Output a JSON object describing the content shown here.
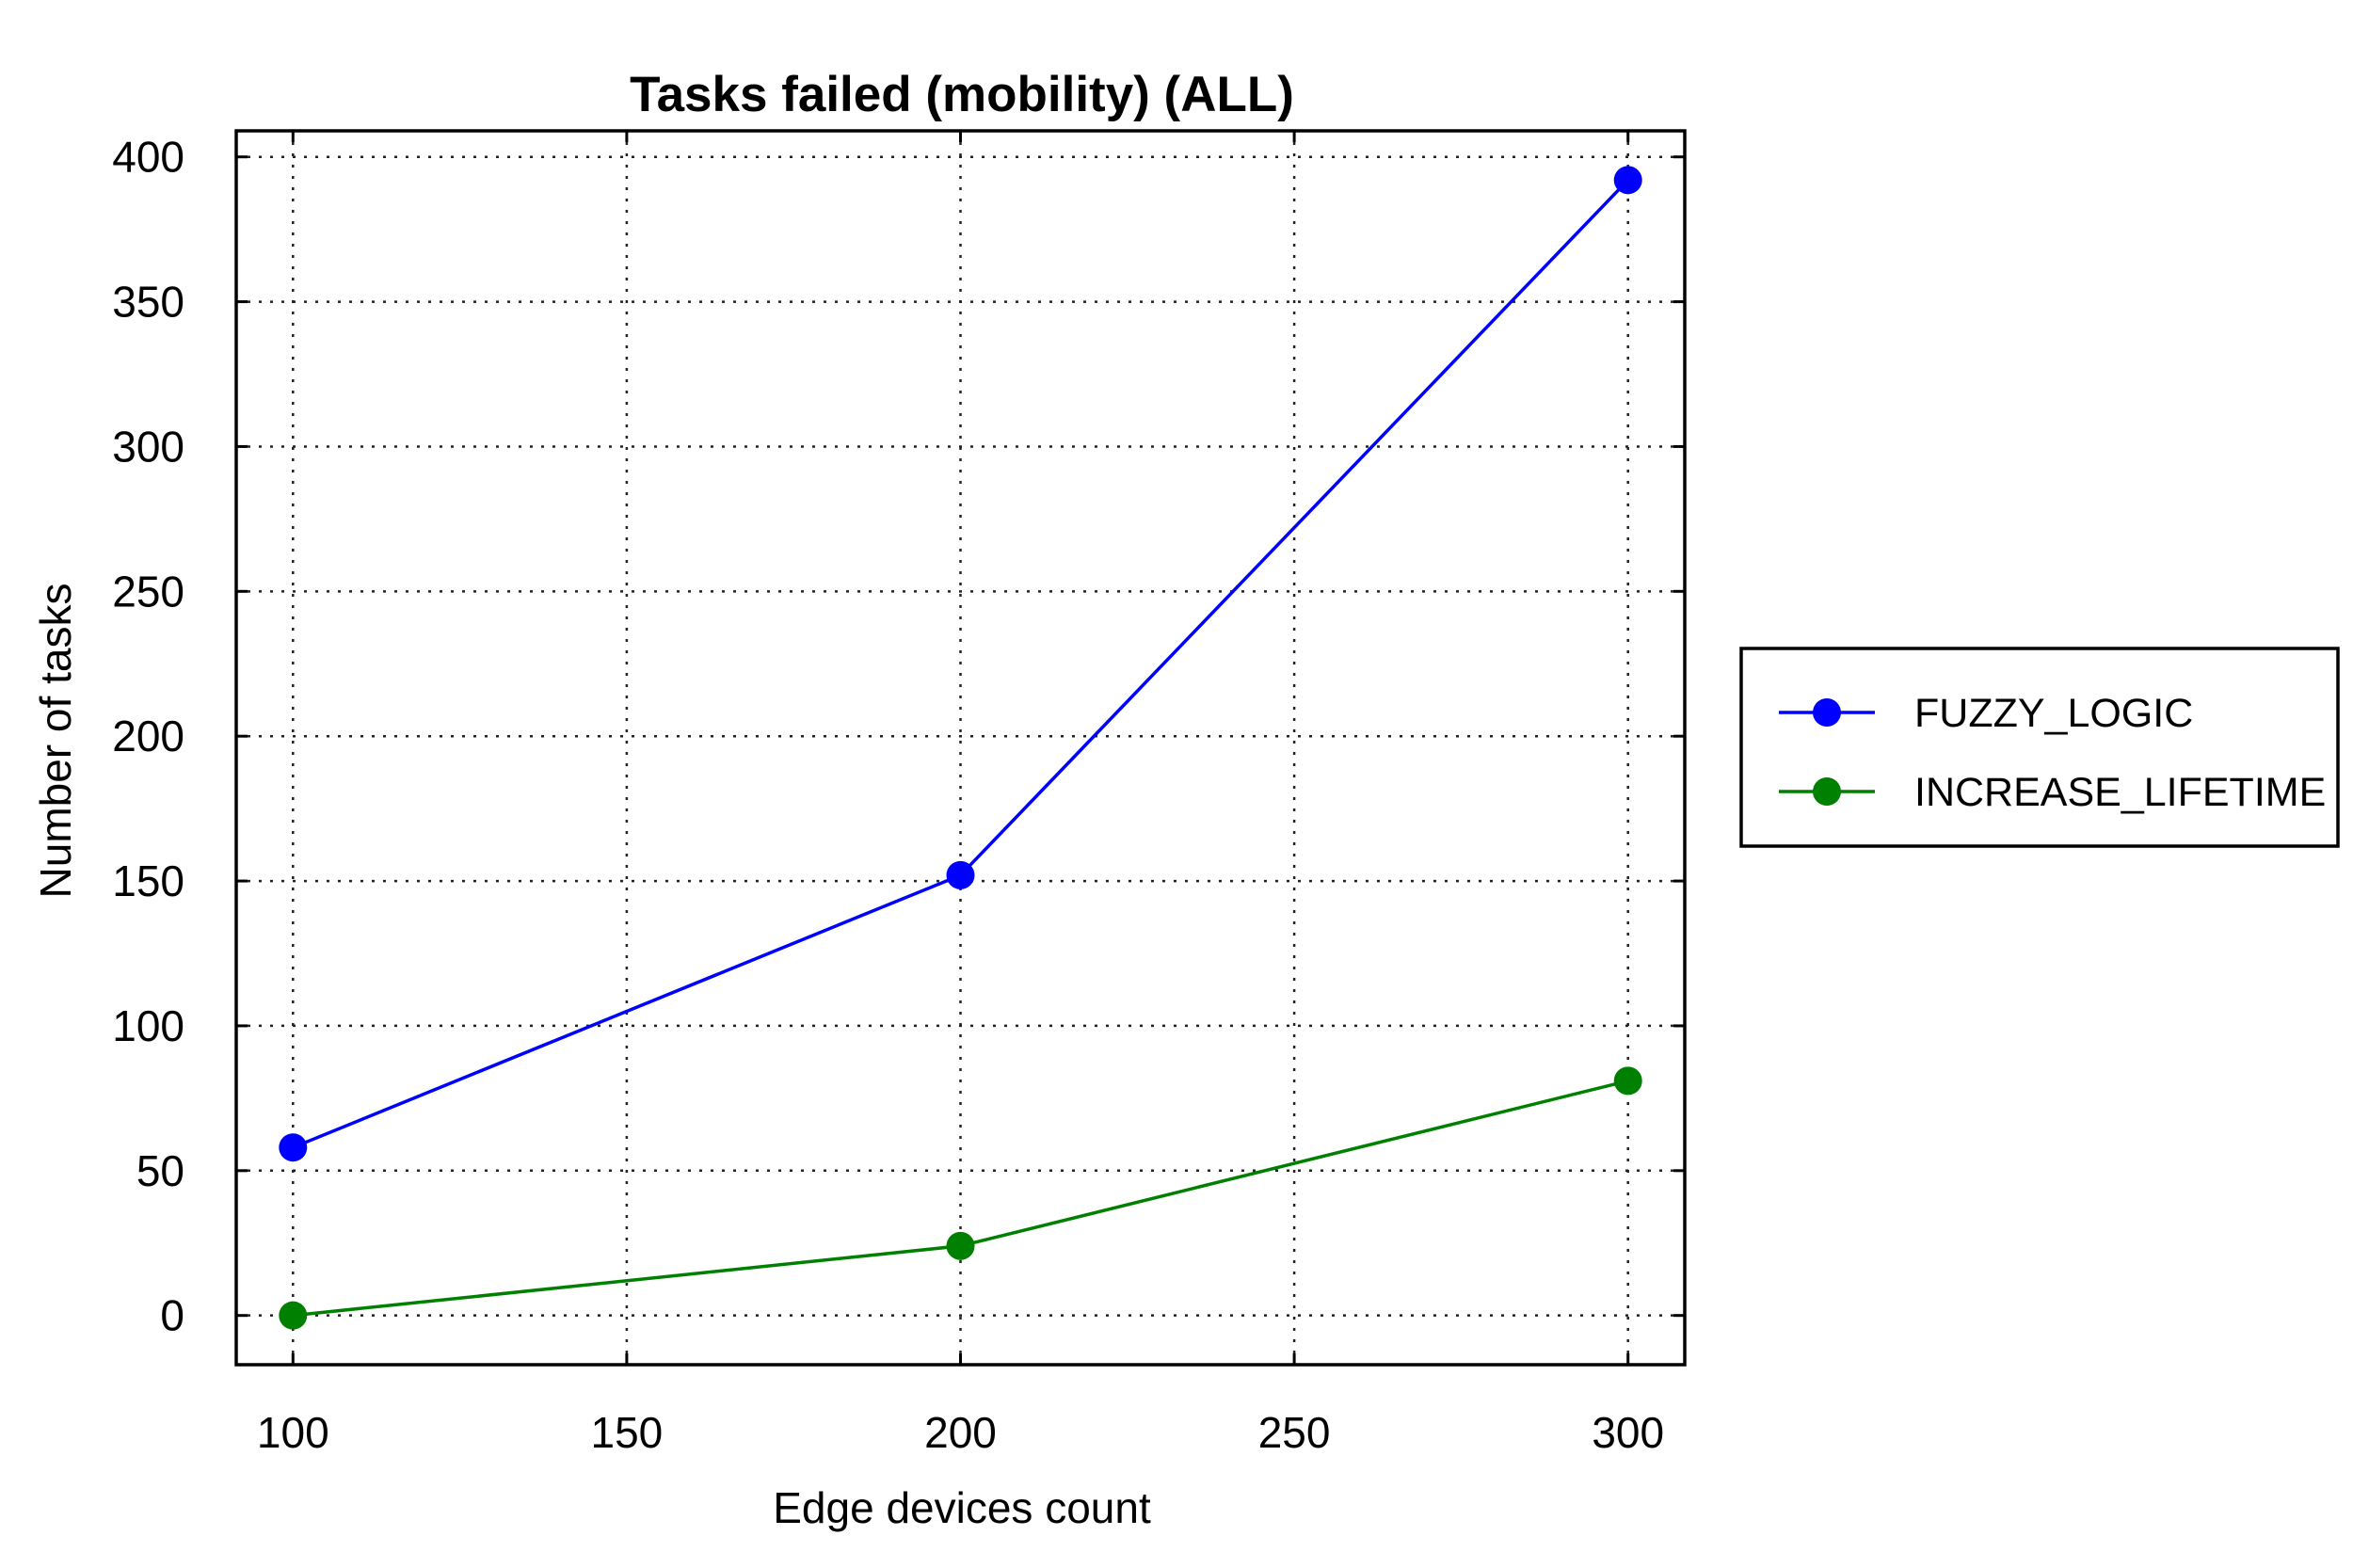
{
  "chart_data": {
    "type": "line",
    "title": "Tasks failed (mobility) (ALL)",
    "xlabel": "Edge devices count",
    "ylabel": "Number of tasks",
    "x": [
      100,
      200,
      300
    ],
    "xticks": [
      "100",
      "150",
      "200",
      "250",
      "300"
    ],
    "yticks": [
      "0",
      "50",
      "100",
      "150",
      "200",
      "250",
      "300",
      "350",
      "400"
    ],
    "xlim": [
      91.5,
      308.5
    ],
    "ylim": [
      -17,
      409
    ],
    "grid": true,
    "legend_position": "right",
    "series": [
      {
        "name": "FUZZY_LOGIC",
        "values": [
          58,
          152,
          392
        ],
        "color": "#0000ff",
        "marker": "circle"
      },
      {
        "name": "INCREASE_LIFETIME",
        "values": [
          0,
          24,
          81
        ],
        "color": "#008000",
        "marker": "circle"
      }
    ]
  }
}
